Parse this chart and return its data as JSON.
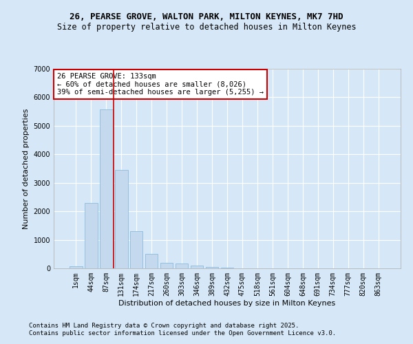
{
  "title_line1": "26, PEARSE GROVE, WALTON PARK, MILTON KEYNES, MK7 7HD",
  "title_line2": "Size of property relative to detached houses in Milton Keynes",
  "xlabel": "Distribution of detached houses by size in Milton Keynes",
  "ylabel": "Number of detached properties",
  "categories": [
    "1sqm",
    "44sqm",
    "87sqm",
    "131sqm",
    "174sqm",
    "217sqm",
    "260sqm",
    "303sqm",
    "346sqm",
    "389sqm",
    "432sqm",
    "475sqm",
    "518sqm",
    "561sqm",
    "604sqm",
    "648sqm",
    "691sqm",
    "734sqm",
    "777sqm",
    "820sqm",
    "863sqm"
  ],
  "values": [
    80,
    2300,
    5580,
    3450,
    1300,
    510,
    205,
    175,
    95,
    60,
    30,
    5,
    0,
    0,
    0,
    0,
    0,
    0,
    0,
    0,
    0
  ],
  "bar_color": "#c5d9ee",
  "bar_edge_color": "#7ab4d8",
  "vline_x_between": 2.5,
  "vline_color": "#cc0000",
  "annotation_text": "26 PEARSE GROVE: 133sqm\n← 60% of detached houses are smaller (8,026)\n39% of semi-detached houses are larger (5,255) →",
  "annotation_box_facecolor": "#ffffff",
  "annotation_box_edgecolor": "#cc0000",
  "ylim": [
    0,
    7000
  ],
  "yticks": [
    0,
    1000,
    2000,
    3000,
    4000,
    5000,
    6000,
    7000
  ],
  "background_color": "#d6e8f7",
  "plot_background": "#d6e8f7",
  "grid_color": "#ffffff",
  "footer_line1": "Contains HM Land Registry data © Crown copyright and database right 2025.",
  "footer_line2": "Contains public sector information licensed under the Open Government Licence v3.0.",
  "title_fontsize": 9,
  "subtitle_fontsize": 8.5,
  "axis_label_fontsize": 8,
  "tick_fontsize": 7,
  "annotation_fontsize": 7.5,
  "footer_fontsize": 6.5
}
